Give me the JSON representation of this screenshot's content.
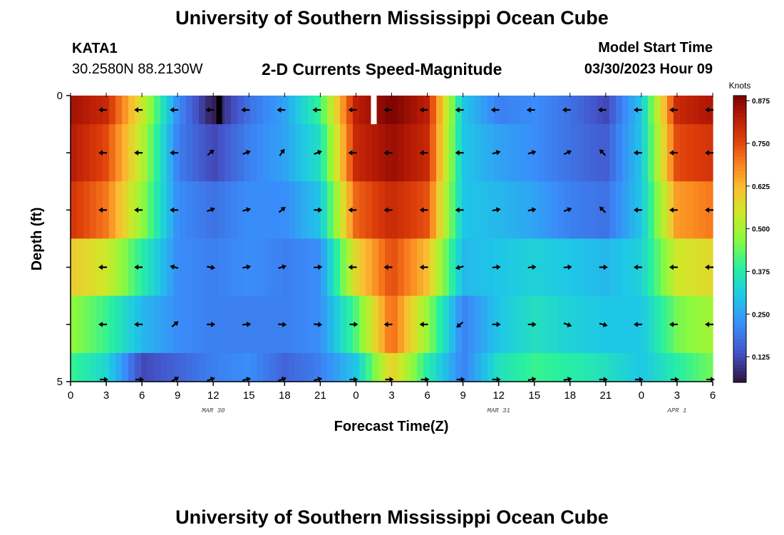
{
  "header": {
    "title": "University of Southern Mississippi Ocean Cube",
    "station": "KATA1",
    "coords": "30.2580N  88.2130W",
    "subtitle": "2-D Currents Speed-Magnitude",
    "start_label": "Model Start Time",
    "start_value": "03/30/2023 Hour 09"
  },
  "footer": {
    "title": "University of Southern Mississippi Ocean Cube"
  },
  "chart_data": {
    "type": "heatmap",
    "title": "2-D Currents Speed-Magnitude",
    "xlabel": "Forecast Time(Z)",
    "ylabel": "Depth (ft)",
    "x_range": [
      0,
      54
    ],
    "y_range": [
      0,
      5
    ],
    "x_tick_values": [
      0,
      3,
      6,
      9,
      12,
      15,
      18,
      21,
      24,
      27,
      30,
      33,
      36,
      39,
      42,
      45,
      48,
      51,
      54
    ],
    "x_tick_labels": [
      "0",
      "3",
      "6",
      "9",
      "12",
      "15",
      "18",
      "21",
      "0",
      "3",
      "6",
      "9",
      "12",
      "15",
      "18",
      "21",
      "0",
      "3",
      "6"
    ],
    "y_tick_labels": [
      "0",
      "5"
    ],
    "date_labels": [
      {
        "x": 12,
        "text": "MAR 30"
      },
      {
        "x": 36,
        "text": "MAR 31"
      },
      {
        "x": 51,
        "text": "APR 1"
      }
    ],
    "colorbar": {
      "unit": "Knots",
      "min": 0.05,
      "max": 0.89,
      "ticks": [
        "0.875",
        "0.750",
        "0.625",
        "0.500",
        "0.375",
        "0.250",
        "0.125"
      ],
      "tick_values": [
        0.875,
        0.75,
        0.625,
        0.5,
        0.375,
        0.25,
        0.125
      ]
    },
    "hours": [
      0,
      3,
      6,
      9,
      12,
      15,
      18,
      21,
      24,
      27,
      30,
      33,
      36,
      39,
      42,
      45,
      48,
      51,
      54
    ],
    "depth_layers": [
      {
        "depth": 0,
        "speed": [
          0.85,
          0.8,
          0.55,
          0.22,
          0.06,
          0.18,
          0.25,
          0.4,
          0.82,
          0.89,
          0.82,
          0.3,
          0.2,
          0.22,
          0.18,
          0.12,
          0.3,
          0.8,
          0.84
        ]
      },
      {
        "depth": 1,
        "speed": [
          0.83,
          0.75,
          0.52,
          0.2,
          0.12,
          0.2,
          0.25,
          0.35,
          0.8,
          0.86,
          0.8,
          0.3,
          0.25,
          0.22,
          0.18,
          0.15,
          0.3,
          0.75,
          0.78
        ]
      },
      {
        "depth": 2,
        "speed": [
          0.78,
          0.7,
          0.48,
          0.22,
          0.18,
          0.22,
          0.22,
          0.3,
          0.72,
          0.8,
          0.74,
          0.3,
          0.28,
          0.25,
          0.2,
          0.18,
          0.3,
          0.66,
          0.7
        ]
      },
      {
        "depth": 3,
        "speed": [
          0.6,
          0.55,
          0.38,
          0.22,
          0.2,
          0.22,
          0.2,
          0.22,
          0.58,
          0.75,
          0.62,
          0.28,
          0.3,
          0.32,
          0.3,
          0.28,
          0.32,
          0.55,
          0.58
        ]
      },
      {
        "depth": 4,
        "speed": [
          0.48,
          0.4,
          0.28,
          0.22,
          0.2,
          0.2,
          0.2,
          0.22,
          0.42,
          0.72,
          0.48,
          0.2,
          0.3,
          0.35,
          0.32,
          0.3,
          0.3,
          0.45,
          0.5
        ]
      },
      {
        "depth": 4.5,
        "speed": [
          0.4,
          0.33,
          0.12,
          0.16,
          0.2,
          0.22,
          0.16,
          0.2,
          0.3,
          0.6,
          0.38,
          0.2,
          0.35,
          0.4,
          0.38,
          0.35,
          0.3,
          0.38,
          0.45
        ]
      }
    ],
    "arrow_hours": [
      3,
      6,
      9,
      12,
      15,
      18,
      21,
      24,
      27,
      30,
      33,
      36,
      39,
      42,
      45,
      48,
      51,
      54
    ],
    "arrow_rows": [
      {
        "depth": 0.25,
        "direction_deg": [
          180,
          180,
          180,
          180,
          180,
          180,
          180,
          180,
          180,
          180,
          180,
          180,
          180,
          180,
          180,
          180,
          180,
          180
        ]
      },
      {
        "depth": 1,
        "direction_deg": [
          180,
          180,
          180,
          40,
          20,
          55,
          20,
          180,
          180,
          180,
          180,
          15,
          15,
          25,
          135,
          180,
          180,
          180
        ]
      },
      {
        "depth": 2,
        "direction_deg": [
          180,
          180,
          180,
          20,
          15,
          40,
          0,
          180,
          180,
          180,
          180,
          10,
          10,
          20,
          135,
          180,
          180,
          180
        ]
      },
      {
        "depth": 3,
        "direction_deg": [
          180,
          180,
          165,
          350,
          10,
          15,
          5,
          180,
          180,
          180,
          195,
          5,
          5,
          5,
          0,
          180,
          180,
          180
        ]
      },
      {
        "depth": 4,
        "direction_deg": [
          180,
          180,
          40,
          0,
          5,
          355,
          355,
          0,
          180,
          180,
          220,
          0,
          0,
          340,
          345,
          180,
          180,
          180
        ]
      },
      {
        "depth": 5,
        "direction_deg": [
          0,
          0,
          30,
          20,
          15,
          20,
          15,
          0,
          0,
          0,
          0,
          0,
          10,
          10,
          0,
          0,
          0,
          0
        ]
      }
    ],
    "missing_cells": [
      {
        "hour": 12.5,
        "depth_from": 0,
        "depth_to": 0.5,
        "color": "#000000"
      },
      {
        "hour": 25.5,
        "depth_from": 0,
        "depth_to": 0.5,
        "color": "#ffffff"
      }
    ]
  }
}
